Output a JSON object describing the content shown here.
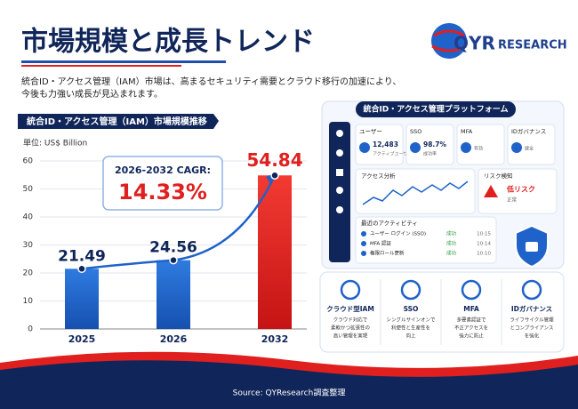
{
  "header": {
    "title": "市場規模と成長トレンド",
    "logo_mark": "QYR",
    "logo_name": "RESEARCH",
    "description": [
      "統合ID・アクセス管理（IAM）市場は、高まるセキュリティ需要とクラウド移行の加速により、",
      "今後も力強い成長が見込まれます。"
    ]
  },
  "chart_data": {
    "type": "bar",
    "title": "統合ID・アクセス管理（IAM）市場規模推移",
    "y_label": "単位: US$ Billion",
    "categories": [
      "2025",
      "2026",
      "2032"
    ],
    "values": [
      21.49,
      24.56,
      54.84
    ],
    "colors": [
      "#1f62c9",
      "#1f62c9",
      "#e0201f"
    ],
    "ylim": [
      0,
      60
    ],
    "yticks": [
      0,
      10,
      20,
      30,
      40,
      50,
      60
    ],
    "grid": true,
    "annotation": {
      "label": "2026-2032 CAGR:",
      "value": "14.33%"
    }
  },
  "platform": {
    "title": "統合ID・アクセス管理プラットフォーム",
    "cards": [
      {
        "name": "ユーザー",
        "value": "12,483",
        "note": "アクティブユーザー"
      },
      {
        "name": "SSO",
        "value": "98.7%",
        "note": "成功率"
      },
      {
        "name": "MFA",
        "value": "",
        "note": "有効"
      },
      {
        "name": "IDガバナンス",
        "value": "",
        "note": "健全"
      }
    ],
    "access": "アクセス分析",
    "risk": {
      "title": "リスク検知",
      "value": "低リスク",
      "note": "正常"
    },
    "activity": {
      "title": "最近のアクティビティ",
      "rows": [
        [
          "ユーザー ログイン (SSO)",
          "成功",
          "10:15"
        ],
        [
          "MFA 認証",
          "成功",
          "10:14"
        ],
        [
          "権限ロール更新",
          "成功",
          "10:10"
        ]
      ]
    }
  },
  "features": [
    {
      "title": "クラウド型IAM",
      "desc": [
        "クラウド対応で",
        "柔軟かつ拡張性の",
        "高い管理を実現"
      ]
    },
    {
      "title": "SSO",
      "desc": [
        "シングルサインオンで",
        "利便性と生産性を",
        "向上"
      ]
    },
    {
      "title": "MFA",
      "desc": [
        "多要素認証で",
        "不正アクセスを",
        "強力に防止"
      ]
    },
    {
      "title": "IDガバナンス",
      "desc": [
        "ライフサイクル管理",
        "とコンプライアンス",
        "を強化"
      ]
    }
  ],
  "source": "Source: QYResearch調査整理"
}
